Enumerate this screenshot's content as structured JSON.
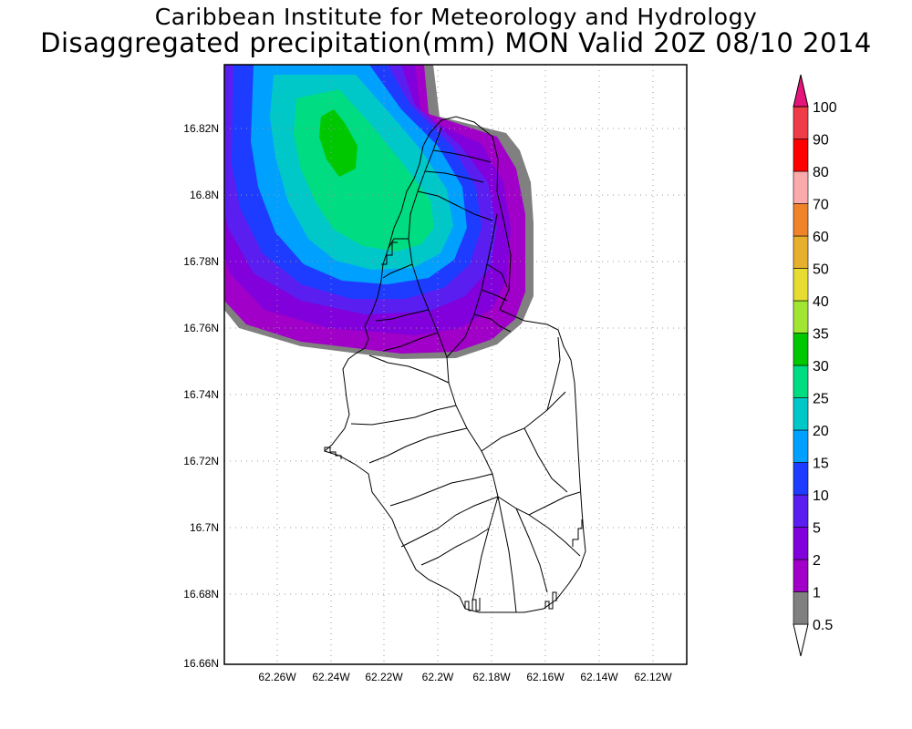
{
  "title": {
    "line1": "Caribbean Institute for Meteorology and Hydrology",
    "line2": "Disaggregated precipitation(mm) MON Valid 20Z 08/10 2014"
  },
  "map": {
    "lat_ticks": [
      "16.82N",
      "16.8N",
      "16.78N",
      "16.76N",
      "16.74N",
      "16.72N",
      "16.7N",
      "16.68N",
      "16.66N"
    ],
    "lon_ticks": [
      "62.26W",
      "62.24W",
      "62.22W",
      "62.2W",
      "62.18W",
      "62.16W",
      "62.14W",
      "62.12W"
    ],
    "grid": true,
    "lat_range": [
      16.66,
      16.84
    ],
    "lon_range": [
      -62.278,
      -62.108
    ]
  },
  "colorbar": {
    "levels": [
      "0.5",
      "1",
      "2",
      "5",
      "10",
      "15",
      "20",
      "25",
      "30",
      "35",
      "40",
      "50",
      "60",
      "70",
      "80",
      "90",
      "100"
    ],
    "colors": [
      "#ffffff",
      "#808080",
      "#a000c8",
      "#8200dc",
      "#5a1ef0",
      "#1e3cff",
      "#00a0ff",
      "#00c8c8",
      "#00dc82",
      "#00c800",
      "#a0e632",
      "#e6dc32",
      "#e6af2d",
      "#f08228",
      "#faaaaa",
      "#ff0000",
      "#f03c46",
      "#e6147a"
    ]
  }
}
